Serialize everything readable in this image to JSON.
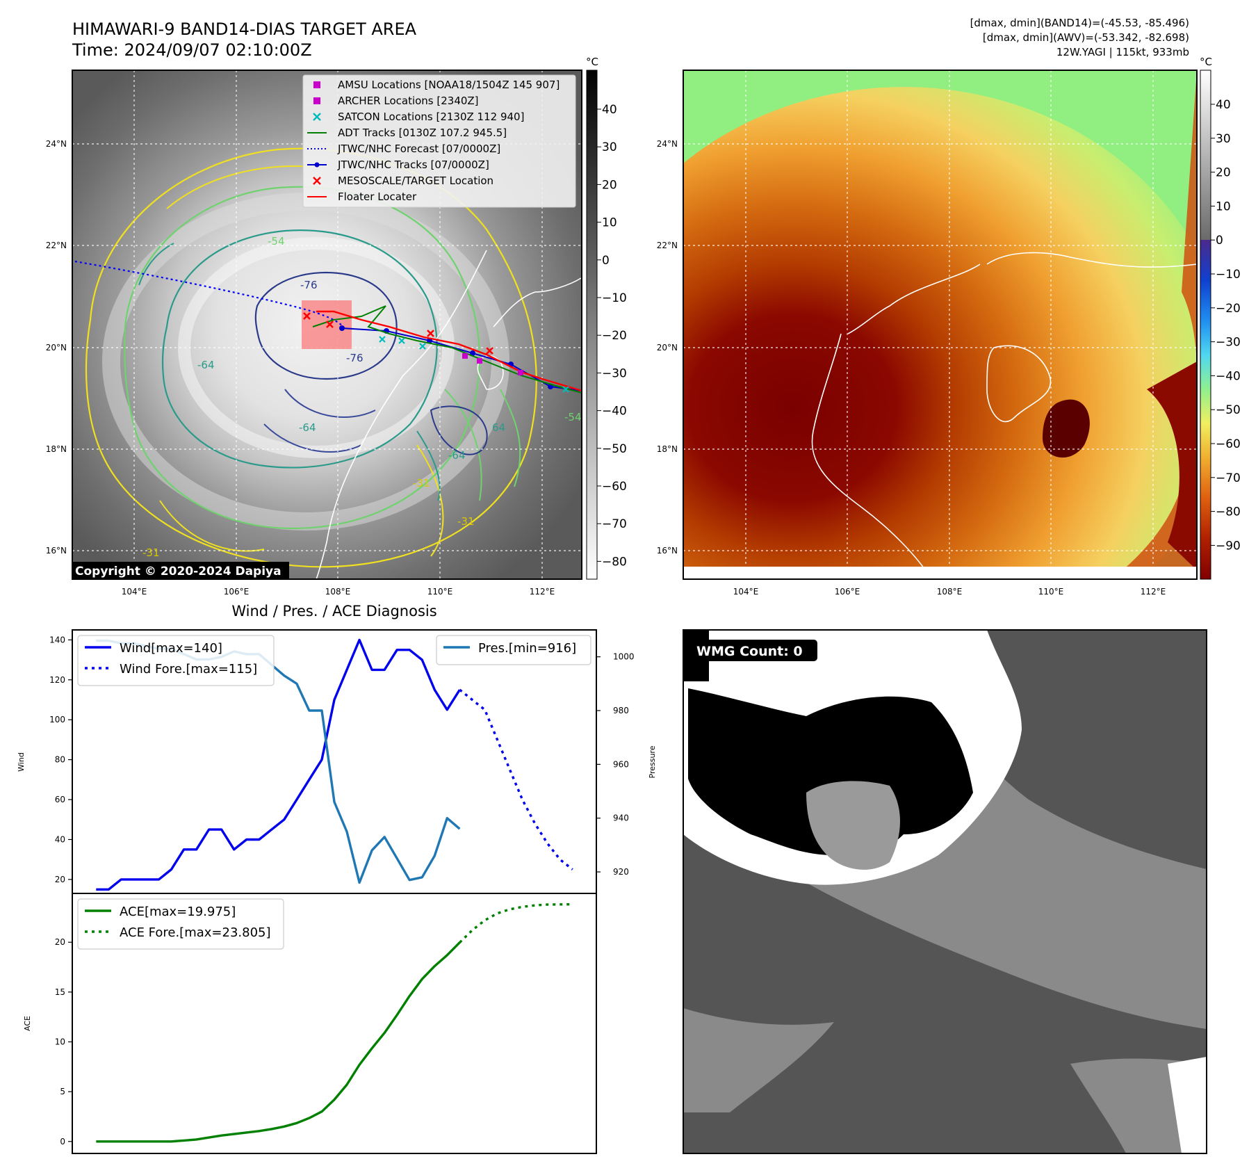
{
  "header": {
    "title": "HIMAWARI-9 BAND14-DIAS TARGET AREA",
    "time": "Time: 2024/09/07 02:10:00Z",
    "stats_band14": "[dmax, dmin](BAND14)=(-45.53, -85.496)",
    "stats_awv": "[dmax, dmin](AWV)=(-53.342, -82.698)",
    "storm": "12W.YAGI | 115kt, 933mb"
  },
  "copyright": "Copyright © 2020-2024 Dapiya",
  "colors": {
    "wind": "#0000ee",
    "pressure": "#1f77b4",
    "ace": "#008000",
    "floater": "#ff0000",
    "amsu": "#cc00cc",
    "satcon": "#00bbbb",
    "adt": "#008000",
    "jtwc": "#0000cc"
  },
  "map_axes": {
    "lon_ticks": [
      "104°E",
      "106°E",
      "108°E",
      "110°E",
      "112°E"
    ],
    "lat_ticks": [
      "24°N",
      "22°N",
      "20°N",
      "18°N",
      "16°N"
    ]
  },
  "colorbar_left": {
    "unit": "°C",
    "ticks": [
      "40",
      "30",
      "20",
      "10",
      "0",
      "−10",
      "−20",
      "−30",
      "−40",
      "−50",
      "−60",
      "−70",
      "−80"
    ]
  },
  "colorbar_right": {
    "unit": "°C",
    "ticks": [
      "40",
      "30",
      "20",
      "10",
      "0",
      "−10",
      "−20",
      "−30",
      "−40",
      "−50",
      "−60",
      "−70",
      "−80",
      "−90"
    ]
  },
  "contour_labels": [
    "-76",
    "-76",
    "-64",
    "-64",
    "-64",
    "-54",
    "-54",
    "64",
    "-31",
    "-31",
    "-31"
  ],
  "legend": [
    {
      "label": "AMSU Locations [NOAA18/1504Z 145 907]",
      "marker": "square",
      "color": "#cc00cc"
    },
    {
      "label": "ARCHER Locations [2340Z]",
      "marker": "square",
      "color": "#cc00cc"
    },
    {
      "label": "SATCON Locations [2130Z 112 940]",
      "marker": "x",
      "color": "#00bbbb"
    },
    {
      "label": "ADT Tracks [0130Z 107.2 945.5]",
      "marker": "line",
      "color": "#008000"
    },
    {
      "label": "JTWC/NHC Forecast [07/0000Z]",
      "marker": "dotted",
      "color": "#0000ff"
    },
    {
      "label": "JTWC/NHC Tracks [07/0000Z]",
      "marker": "line-dot",
      "color": "#0000cc"
    },
    {
      "label": "MESOSCALE/TARGET Location",
      "marker": "x",
      "color": "#ff0000"
    },
    {
      "label": "Floater Locater",
      "marker": "line",
      "color": "#ff0000"
    }
  ],
  "wmg": {
    "label": "WMG Count: 0"
  },
  "chart_data": [
    {
      "type": "line",
      "title": "Wind / Pres. / ACE Diagnosis",
      "ylabel": "Wind",
      "ylabel_right": "Pressure",
      "x": [
        0,
        1,
        2,
        3,
        4,
        5,
        6,
        7,
        8,
        9,
        10,
        11,
        12,
        13,
        14,
        15,
        16,
        17,
        18,
        19,
        20,
        21,
        22,
        23,
        24,
        25,
        26,
        27,
        28,
        29,
        30,
        31,
        32,
        33,
        34,
        35,
        36,
        37,
        38
      ],
      "ylim": [
        13,
        145
      ],
      "ylim_right": [
        912,
        1010
      ],
      "yticks": [
        20,
        40,
        60,
        80,
        100,
        120,
        140
      ],
      "yticks_right": [
        920,
        940,
        960,
        980,
        1000
      ],
      "series": [
        {
          "name": "Wind[max=140]",
          "style": "solid",
          "axis": "left",
          "x": [
            0,
            1,
            2,
            3,
            4,
            5,
            6,
            7,
            8,
            9,
            10,
            11,
            12,
            13,
            14,
            15,
            16,
            17,
            18,
            19,
            20,
            21,
            22,
            23,
            24,
            25,
            26,
            27,
            28,
            29
          ],
          "values": [
            15,
            15,
            20,
            20,
            20,
            20,
            25,
            35,
            35,
            45,
            45,
            35,
            40,
            40,
            45,
            50,
            60,
            70,
            80,
            110,
            125,
            140,
            125,
            125,
            135,
            135,
            130,
            115,
            105,
            115
          ]
        },
        {
          "name": "Wind Fore.[max=115]",
          "style": "dotted",
          "axis": "left",
          "x": [
            29,
            30,
            31,
            32,
            33,
            34,
            35,
            36,
            37,
            38
          ],
          "values": [
            115,
            110,
            105,
            90,
            75,
            60,
            48,
            38,
            30,
            25
          ]
        },
        {
          "name": "Pres.[min=916]",
          "style": "solid",
          "axis": "right",
          "x": [
            0,
            1,
            2,
            3,
            4,
            5,
            6,
            7,
            8,
            9,
            10,
            11,
            12,
            13,
            14,
            15,
            16,
            17,
            18,
            19,
            20,
            21,
            22,
            23,
            24,
            25,
            26,
            27,
            28,
            29
          ],
          "values": [
            1006,
            1006,
            1005,
            1005,
            1004,
            1003,
            1003,
            1001,
            999,
            999,
            1000,
            1002,
            1001,
            1001,
            997,
            993,
            990,
            980,
            980,
            946,
            935,
            916,
            928,
            933,
            925,
            917,
            918,
            926,
            940,
            936
          ]
        }
      ],
      "legend": [
        "top-left",
        "top-right"
      ]
    },
    {
      "type": "line",
      "ylabel": "ACE",
      "x": [
        0,
        1,
        2,
        3,
        4,
        5,
        6,
        7,
        8,
        9,
        10,
        11,
        12,
        13,
        14,
        15,
        16,
        17,
        18,
        19,
        20,
        21,
        22,
        23,
        24,
        25,
        26,
        27,
        28,
        29,
        30,
        31,
        32,
        33,
        34,
        35,
        36,
        37,
        38
      ],
      "ylim": [
        -1.2,
        24.9
      ],
      "yticks": [
        0,
        5,
        10,
        15,
        20
      ],
      "series": [
        {
          "name": "ACE[max=19.975]",
          "style": "solid",
          "x": [
            0,
            1,
            2,
            3,
            4,
            5,
            6,
            7,
            8,
            9,
            10,
            11,
            12,
            13,
            14,
            15,
            16,
            17,
            18,
            19,
            20,
            21,
            22,
            23,
            24,
            25,
            26,
            27,
            28,
            29
          ],
          "values": [
            0,
            0,
            0,
            0,
            0,
            0,
            0,
            0.1,
            0.2,
            0.4,
            0.6,
            0.75,
            0.9,
            1.05,
            1.25,
            1.5,
            1.85,
            2.35,
            3.0,
            4.2,
            5.7,
            7.7,
            9.35,
            10.9,
            12.7,
            14.6,
            16.3,
            17.6,
            18.7,
            19.975
          ]
        },
        {
          "name": "ACE Fore.[max=23.805]",
          "style": "dotted",
          "x": [
            29,
            30,
            31,
            32,
            33,
            34,
            35,
            36,
            37,
            38
          ],
          "values": [
            19.975,
            21.2,
            22.2,
            22.9,
            23.3,
            23.55,
            23.7,
            23.78,
            23.8,
            23.805
          ]
        }
      ],
      "legend": "top-left"
    }
  ]
}
